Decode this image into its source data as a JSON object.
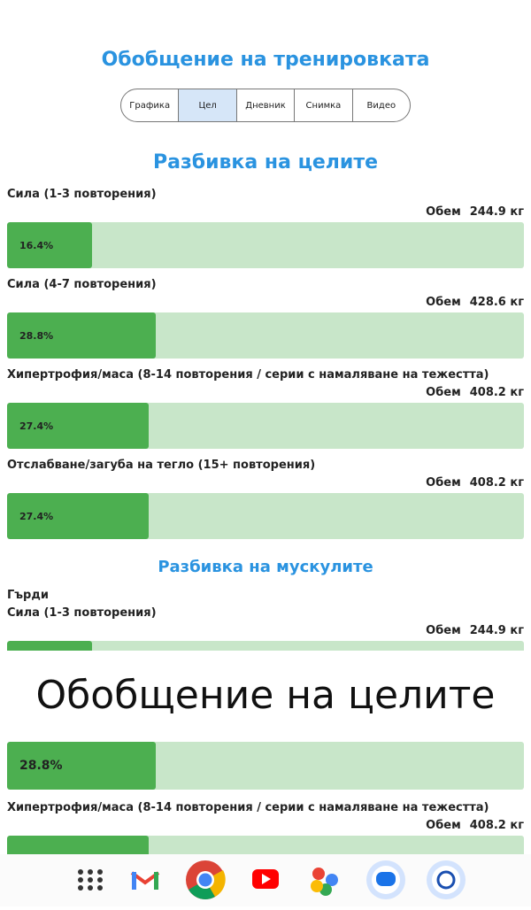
{
  "header": {
    "title": "Обобщение на тренировката",
    "tabs": [
      "Графика",
      "Цел",
      "Дневник",
      "Снимка",
      "Видео"
    ],
    "active_tab": 1
  },
  "goal_breakdown": {
    "title": "Разбивка на целите",
    "items": [
      {
        "label": "Сила (1-3 повторения)",
        "volume_label": "Обем",
        "volume": "244.9 кг",
        "percent": {
          "value": 16.4,
          "label": "16.4%"
        }
      },
      {
        "label": "Сила (4-7 повторения)",
        "volume_label": "Обем",
        "volume": "428.6 кг",
        "percent": {
          "value": 28.8,
          "label": "28.8%"
        }
      },
      {
        "label": "Хипертрофия/маса (8-14 повторения / серии с намаляване на тежестта)",
        "volume_label": "Обем",
        "volume": "408.2 кг",
        "percent": {
          "value": 27.4,
          "label": "27.4%"
        }
      },
      {
        "label": "Отслабване/загуба на тегло (15+ повторения)",
        "volume_label": "Обем",
        "volume": "408.2 кг",
        "percent": {
          "value": 27.4,
          "label": "27.4%"
        }
      }
    ]
  },
  "muscle_breakdown": {
    "title": "Разбивка на мускулите",
    "group": "Гърди",
    "items": [
      {
        "label": "Сила (1-3 повторения)",
        "volume_label": "Обем",
        "volume": "244.9 кг",
        "percent": 16.4
      },
      {
        "percent": {
          "value": 28.8,
          "label": "28.8%"
        }
      },
      {
        "label": "Хипертрофия/маса (8-14 повторения / серии с намаляване на тежестта)",
        "volume_label": "Обем",
        "volume": "408.2 кг",
        "percent": 27.4
      }
    ]
  },
  "overlay": {
    "caption": "Обобщение на целите"
  }
}
